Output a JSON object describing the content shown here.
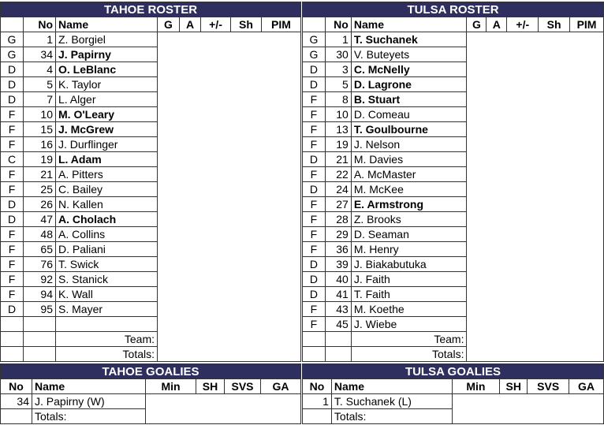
{
  "rosters": [
    {
      "title": "TAHOE ROSTER",
      "headers": [
        "",
        "No",
        "Name",
        "G",
        "A",
        "+/-",
        "Sh",
        "PIM"
      ],
      "players": [
        {
          "pos": "G",
          "no": "1",
          "name": "Z. Borgiel",
          "bold": false
        },
        {
          "pos": "G",
          "no": "34",
          "name": "J. Papirny",
          "bold": true
        },
        {
          "pos": "D",
          "no": "4",
          "name": "O. LeBlanc",
          "bold": true
        },
        {
          "pos": "D",
          "no": "5",
          "name": "K. Taylor",
          "bold": false
        },
        {
          "pos": "D",
          "no": "7",
          "name": "L. Alger",
          "bold": false
        },
        {
          "pos": "F",
          "no": "10",
          "name": "M. O'Leary",
          "bold": true
        },
        {
          "pos": "F",
          "no": "15",
          "name": "J. McGrew",
          "bold": true
        },
        {
          "pos": "F",
          "no": "16",
          "name": "J. Durflinger",
          "bold": false
        },
        {
          "pos": "C",
          "no": "19",
          "name": "L. Adam",
          "bold": true
        },
        {
          "pos": "F",
          "no": "21",
          "name": "A. Pitters",
          "bold": false
        },
        {
          "pos": "F",
          "no": "25",
          "name": "C. Bailey",
          "bold": false
        },
        {
          "pos": "D",
          "no": "26",
          "name": "N. Kallen",
          "bold": false
        },
        {
          "pos": "D",
          "no": "47",
          "name": "A. Cholach",
          "bold": true
        },
        {
          "pos": "F",
          "no": "48",
          "name": "A. Collins",
          "bold": false
        },
        {
          "pos": "F",
          "no": "65",
          "name": "D. Paliani",
          "bold": false
        },
        {
          "pos": "F",
          "no": "76",
          "name": "T. Swick",
          "bold": false
        },
        {
          "pos": "F",
          "no": "92",
          "name": "S. Stanick",
          "bold": false
        },
        {
          "pos": "F",
          "no": "94",
          "name": "K. Wall",
          "bold": false
        },
        {
          "pos": "D",
          "no": "95",
          "name": "S. Mayer",
          "bold": false
        },
        {
          "pos": "",
          "no": "",
          "name": "",
          "bold": false
        }
      ],
      "team_label": "Team:",
      "totals_label": "Totals:"
    },
    {
      "title": "TULSA ROSTER",
      "headers": [
        "",
        "No",
        "Name",
        "G",
        "A",
        "+/-",
        "Sh",
        "PIM"
      ],
      "players": [
        {
          "pos": "G",
          "no": "1",
          "name": "T. Suchanek",
          "bold": true
        },
        {
          "pos": "G",
          "no": "30",
          "name": "V. Buteyets",
          "bold": false
        },
        {
          "pos": "D",
          "no": "3",
          "name": "C. McNelly",
          "bold": true
        },
        {
          "pos": "D",
          "no": "5",
          "name": "D. Lagrone",
          "bold": true
        },
        {
          "pos": "F",
          "no": "8",
          "name": "B. Stuart",
          "bold": true
        },
        {
          "pos": "F",
          "no": "10",
          "name": "D. Comeau",
          "bold": false
        },
        {
          "pos": "F",
          "no": "13",
          "name": "T. Goulbourne",
          "bold": true
        },
        {
          "pos": "F",
          "no": "19",
          "name": "J. Nelson",
          "bold": false
        },
        {
          "pos": "D",
          "no": "21",
          "name": "M. Davies",
          "bold": false
        },
        {
          "pos": "F",
          "no": "22",
          "name": "A. McMaster",
          "bold": false
        },
        {
          "pos": "D",
          "no": "24",
          "name": "M. McKee",
          "bold": false
        },
        {
          "pos": "F",
          "no": "27",
          "name": "E. Armstrong",
          "bold": true
        },
        {
          "pos": "F",
          "no": "28",
          "name": "Z. Brooks",
          "bold": false
        },
        {
          "pos": "F",
          "no": "29",
          "name": "D. Seaman",
          "bold": false
        },
        {
          "pos": "F",
          "no": "36",
          "name": "M. Henry",
          "bold": false
        },
        {
          "pos": "D",
          "no": "39",
          "name": "J. Biakabutuka",
          "bold": false
        },
        {
          "pos": "D",
          "no": "40",
          "name": "J. Faith",
          "bold": false
        },
        {
          "pos": "D",
          "no": "41",
          "name": "T. Faith",
          "bold": false
        },
        {
          "pos": "F",
          "no": "43",
          "name": "M. Koethe",
          "bold": false
        },
        {
          "pos": "F",
          "no": "45",
          "name": "J. Wiebe",
          "bold": false
        }
      ],
      "team_label": "Team:",
      "totals_label": "Totals:"
    }
  ],
  "goalies": [
    {
      "title": "TAHOE GOALIES",
      "headers": [
        "No",
        "Name",
        "Min",
        "SH",
        "SVS",
        "GA"
      ],
      "rows": [
        {
          "no": "34",
          "name": "J. Papirny (W)"
        }
      ],
      "totals_label": "Totals:"
    },
    {
      "title": "TULSA GOALIES",
      "headers": [
        "No",
        "Name",
        "Min",
        "SH",
        "SVS",
        "GA"
      ],
      "rows": [
        {
          "no": "1",
          "name": "T. Suchanek (L)"
        }
      ],
      "totals_label": "Totals:"
    }
  ],
  "colors": {
    "header_bg": "#2f2f5f",
    "header_text": "#ffffff"
  }
}
